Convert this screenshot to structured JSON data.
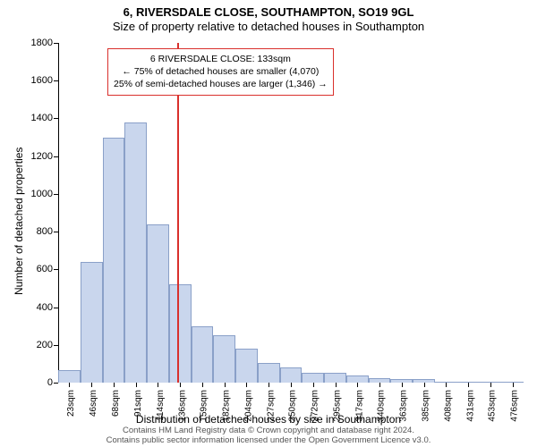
{
  "title_line1": "6, RIVERSDALE CLOSE, SOUTHAMPTON, SO19 9GL",
  "title_line2": "Size of property relative to detached houses in Southampton",
  "ylabel": "Number of detached properties",
  "xlabel": "Distribution of detached houses by size in Southampton",
  "attribution_line1": "Contains HM Land Registry data © Crown copyright and database right 2024.",
  "attribution_line2": "Contains public sector information licensed under the Open Government Licence v3.0.",
  "chart": {
    "type": "histogram",
    "ylim": [
      0,
      1800
    ],
    "ytick_step": 200,
    "yticks": [
      0,
      200,
      400,
      600,
      800,
      1000,
      1200,
      1400,
      1600,
      1800
    ],
    "bar_fill": "#c9d6ed",
    "bar_stroke": "#8aa0c8",
    "background": "#ffffff",
    "categories": [
      "23sqm",
      "46sqm",
      "68sqm",
      "91sqm",
      "114sqm",
      "136sqm",
      "159sqm",
      "182sqm",
      "204sqm",
      "227sqm",
      "250sqm",
      "272sqm",
      "295sqm",
      "317sqm",
      "340sqm",
      "363sqm",
      "385sqm",
      "408sqm",
      "431sqm",
      "453sqm",
      "476sqm"
    ],
    "values": [
      65,
      640,
      1300,
      1380,
      840,
      520,
      300,
      250,
      180,
      105,
      80,
      50,
      50,
      40,
      25,
      20,
      20,
      0,
      0,
      0,
      0
    ],
    "reference_line": {
      "color": "#d9302c",
      "width": 2,
      "value_sqm": 133,
      "label": "6 RIVERSDALE CLOSE: 133sqm"
    },
    "callout": {
      "lines": [
        "6 RIVERSDALE CLOSE: 133sqm",
        "← 75% of detached houses are smaller (4,070)",
        "25% of semi-detached houses are larger (1,346) →"
      ],
      "border_color": "#d9302c",
      "text_color": "#000000",
      "font_size": 10.5
    },
    "label_fontsize": 11
  }
}
